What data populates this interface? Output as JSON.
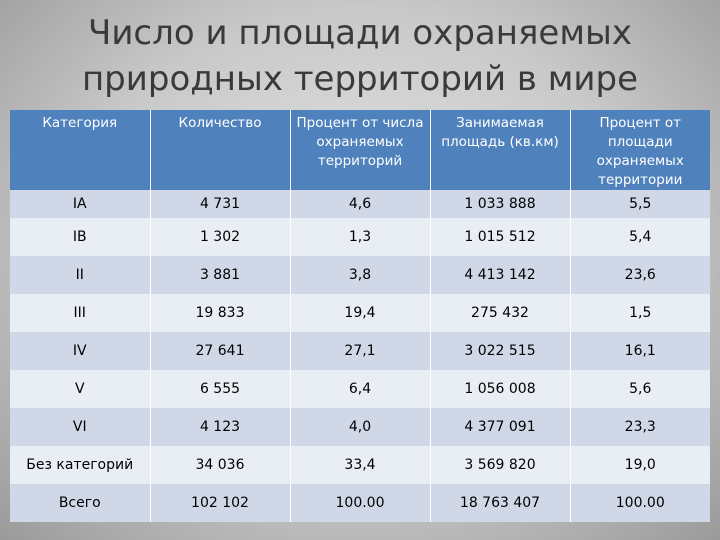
{
  "title": {
    "line1": "Число и площади охраняемых",
    "line2": "природных территорий в мире"
  },
  "table": {
    "headers": [
      "Категория",
      "Количество",
      "Процент от числа охраняемых территорий",
      "Занимаемая площадь (кв.км)",
      "Процент от площади охраняемых территории"
    ],
    "rows": [
      [
        "IA",
        "4 731",
        "4,6",
        "1 033 888",
        "5,5"
      ],
      [
        "IB",
        "1 302",
        "1,3",
        "1 015 512",
        "5,4"
      ],
      [
        "II",
        "3 881",
        "3,8",
        "4 413 142",
        "23,6"
      ],
      [
        "III",
        "19 833",
        "19,4",
        "275 432",
        "1,5"
      ],
      [
        "IV",
        "27 641",
        "27,1",
        "3 022 515",
        "16,1"
      ],
      [
        "V",
        "6 555",
        "6,4",
        "1 056 008",
        "5,6"
      ],
      [
        "VI",
        "4 123",
        "4,0",
        "4 377 091",
        "23,3"
      ],
      [
        "Без категорий",
        "34 036",
        "33,4",
        "3 569 820",
        "19,0"
      ],
      [
        "Всего",
        "102 102",
        "100.00",
        "18 763 407",
        "100.00"
      ]
    ]
  },
  "colors": {
    "header_bg": "#4f81bd",
    "row_odd": "#d0d8e8",
    "row_even": "#e9edf4"
  }
}
